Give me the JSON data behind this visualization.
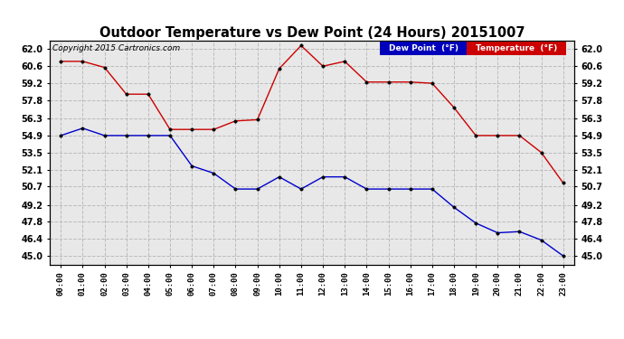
{
  "title": "Outdoor Temperature vs Dew Point (24 Hours) 20151007",
  "copyright": "Copyright 2015 Cartronics.com",
  "x_labels": [
    "00:00",
    "01:00",
    "02:00",
    "03:00",
    "04:00",
    "05:00",
    "06:00",
    "07:00",
    "08:00",
    "09:00",
    "10:00",
    "11:00",
    "12:00",
    "13:00",
    "14:00",
    "15:00",
    "16:00",
    "17:00",
    "18:00",
    "19:00",
    "20:00",
    "21:00",
    "22:00",
    "23:00"
  ],
  "temperature": [
    61.0,
    61.0,
    60.5,
    58.3,
    58.3,
    55.4,
    55.4,
    55.4,
    56.1,
    56.2,
    60.4,
    62.3,
    60.6,
    61.0,
    59.3,
    59.3,
    59.3,
    59.2,
    57.2,
    54.9,
    54.9,
    54.9,
    53.5,
    51.0
  ],
  "dew_point": [
    54.9,
    55.5,
    54.9,
    54.9,
    54.9,
    54.9,
    52.4,
    51.8,
    50.5,
    50.5,
    51.5,
    50.5,
    51.5,
    51.5,
    50.5,
    50.5,
    50.5,
    50.5,
    49.0,
    47.7,
    46.9,
    47.0,
    46.3,
    45.0
  ],
  "temp_color": "#cc0000",
  "dew_color": "#0000cc",
  "ylim_min": 44.3,
  "ylim_max": 62.7,
  "yticks": [
    45.0,
    46.4,
    47.8,
    49.2,
    50.7,
    52.1,
    53.5,
    54.9,
    56.3,
    57.8,
    59.2,
    60.6,
    62.0
  ],
  "bg_color": "#ffffff",
  "plot_bg_color": "#e8e8e8",
  "grid_color": "#bbbbbb",
  "legend_dew_bg": "#0000bb",
  "legend_temp_bg": "#cc0000",
  "legend_text_color": "#ffffff"
}
